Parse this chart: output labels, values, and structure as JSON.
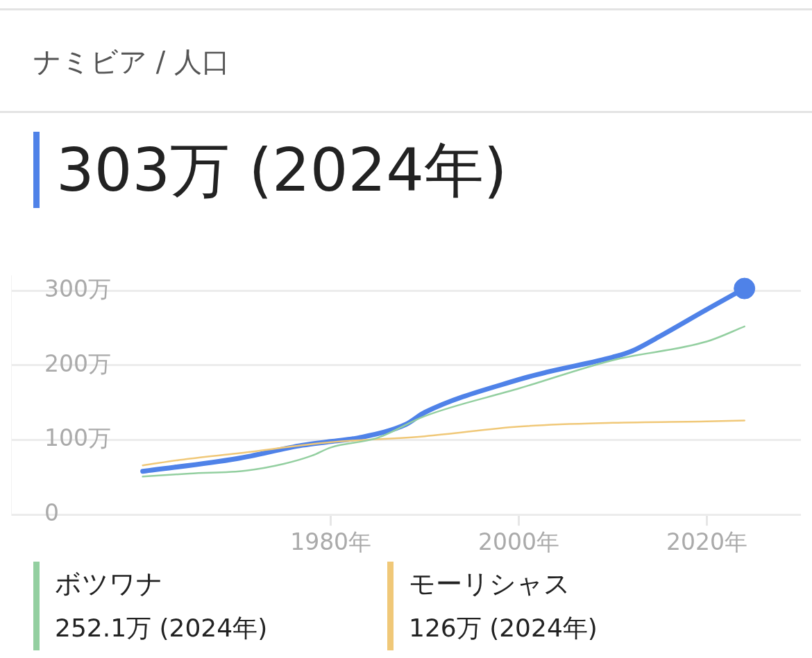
{
  "chart_data": {
    "type": "line",
    "title": "ナミビア / 人口",
    "subtitle": "303万 (2024年)",
    "annotations": [
      "252.1万 (2024年)",
      "126万 (2024年)"
    ],
    "xlim": [
      1946,
      2030
    ],
    "xticks": [
      {
        "value": 1980,
        "label": "1980年"
      },
      {
        "value": 2000,
        "label": "2000年"
      },
      {
        "value": 2020,
        "label": "2020年"
      }
    ],
    "ylim": [
      0,
      320
    ],
    "yticks": [
      0,
      {
        "value": 100,
        "label": "100万"
      },
      {
        "value": 200,
        "label": "200万"
      },
      {
        "value": 300,
        "label": "300万"
      }
    ],
    "grid": "y",
    "legend": "bottom",
    "marker": "none",
    "line_style": "solid",
    "series": [
      {
        "name": "ボツワナ",
        "color": "#93cfa0",
        "x": [
          1960,
          1965,
          1971,
          1975,
          1978,
          1980,
          1985,
          1990,
          2000,
          2010,
          2020,
          2024
        ],
        "values": [
          51,
          55,
          59,
          68,
          79,
          90,
          103,
          132,
          169,
          207,
          232,
          252.1
        ]
      },
      {
        "name": "モーリシャス",
        "color": "#f0c878",
        "x": [
          1960,
          1965,
          1970,
          1980,
          1990,
          2000,
          2010,
          2020,
          2024
        ],
        "values": [
          66,
          75,
          82,
          97,
          105,
          118,
          123,
          125,
          126
        ]
      },
      {
        "color": "#4f82e8",
        "x": [
          1960,
          1970,
          1977,
          1980,
          1983,
          1988,
          1990,
          2000,
          2003,
          2010,
          2012,
          2015,
          2020,
          2024
        ],
        "values": [
          58,
          75,
          93,
          98,
          103,
          121,
          137,
          181,
          191,
          211,
          219,
          239,
          275,
          303
        ]
      },
      {
        "type": "scatter",
        "marker": "circle",
        "color": "#4f82e8",
        "x": [
          2024
        ],
        "values": [
          303
        ]
      }
    ]
  }
}
